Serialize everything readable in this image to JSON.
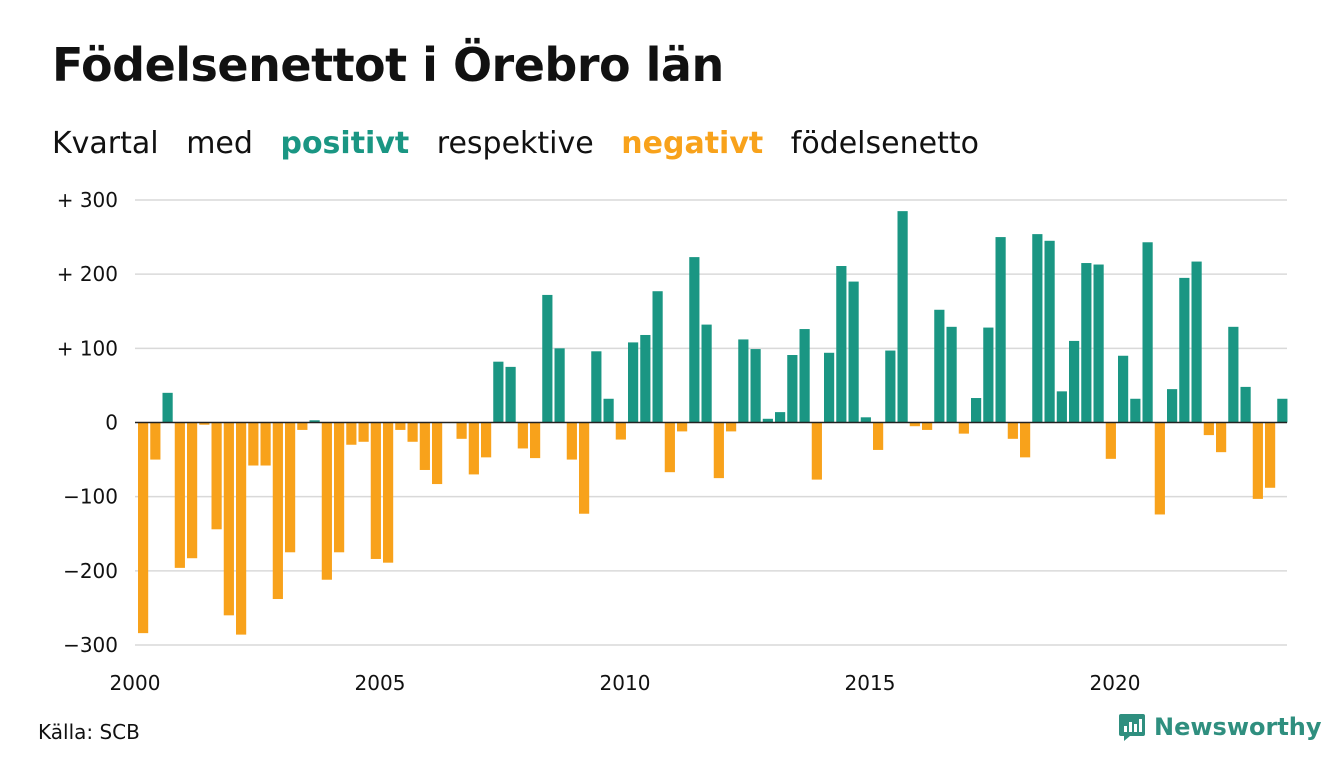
{
  "title": "Födelsenettot i Örebro län",
  "subtitle": {
    "w1": "Kvartal",
    "w2": "med",
    "positive": "positivt",
    "w3": "respektive",
    "negative": "negativt",
    "w4": "födelsenetto"
  },
  "source": "Källa: SCB",
  "brand": "Newsworthy",
  "colors": {
    "positive": "#1a9683",
    "negative": "#f8a21b",
    "grid": "#d9d9d9",
    "axis": "#222222"
  },
  "chart_data": {
    "type": "bar",
    "x_start": "2000 Q1",
    "interval": "quarter",
    "ylim": [
      -300,
      300
    ],
    "yticks": [
      {
        "value": 300,
        "label": "+ 300"
      },
      {
        "value": 200,
        "label": "+ 200"
      },
      {
        "value": 100,
        "label": "+ 100"
      },
      {
        "value": 0,
        "label": "0"
      },
      {
        "value": -100,
        "label": "−100"
      },
      {
        "value": -200,
        "label": "−200"
      },
      {
        "value": -300,
        "label": "−300"
      }
    ],
    "xticks": [
      "2000",
      "2005",
      "2010",
      "2015",
      "2020"
    ],
    "grid": true,
    "values": [
      -284,
      -50,
      40,
      -196,
      -183,
      -3,
      -144,
      -260,
      -286,
      -58,
      -58,
      -238,
      -175,
      -10,
      3,
      -212,
      -175,
      -30,
      -26,
      -184,
      -189,
      -10,
      -26,
      -64,
      -83,
      0,
      -22,
      -70,
      -47,
      82,
      75,
      -35,
      -48,
      172,
      100,
      -50,
      -123,
      96,
      32,
      -23,
      108,
      118,
      177,
      -67,
      -12,
      223,
      132,
      -75,
      -12,
      112,
      99,
      5,
      14,
      91,
      126,
      -77,
      94,
      211,
      190,
      7,
      -37,
      97,
      285,
      -5,
      -10,
      152,
      129,
      -15,
      33,
      128,
      250,
      -22,
      -47,
      254,
      245,
      42,
      110,
      215,
      213,
      -49,
      90,
      32,
      243,
      -124,
      45,
      195,
      217,
      -17,
      -40,
      129,
      48,
      -103,
      -88,
      32
    ]
  }
}
